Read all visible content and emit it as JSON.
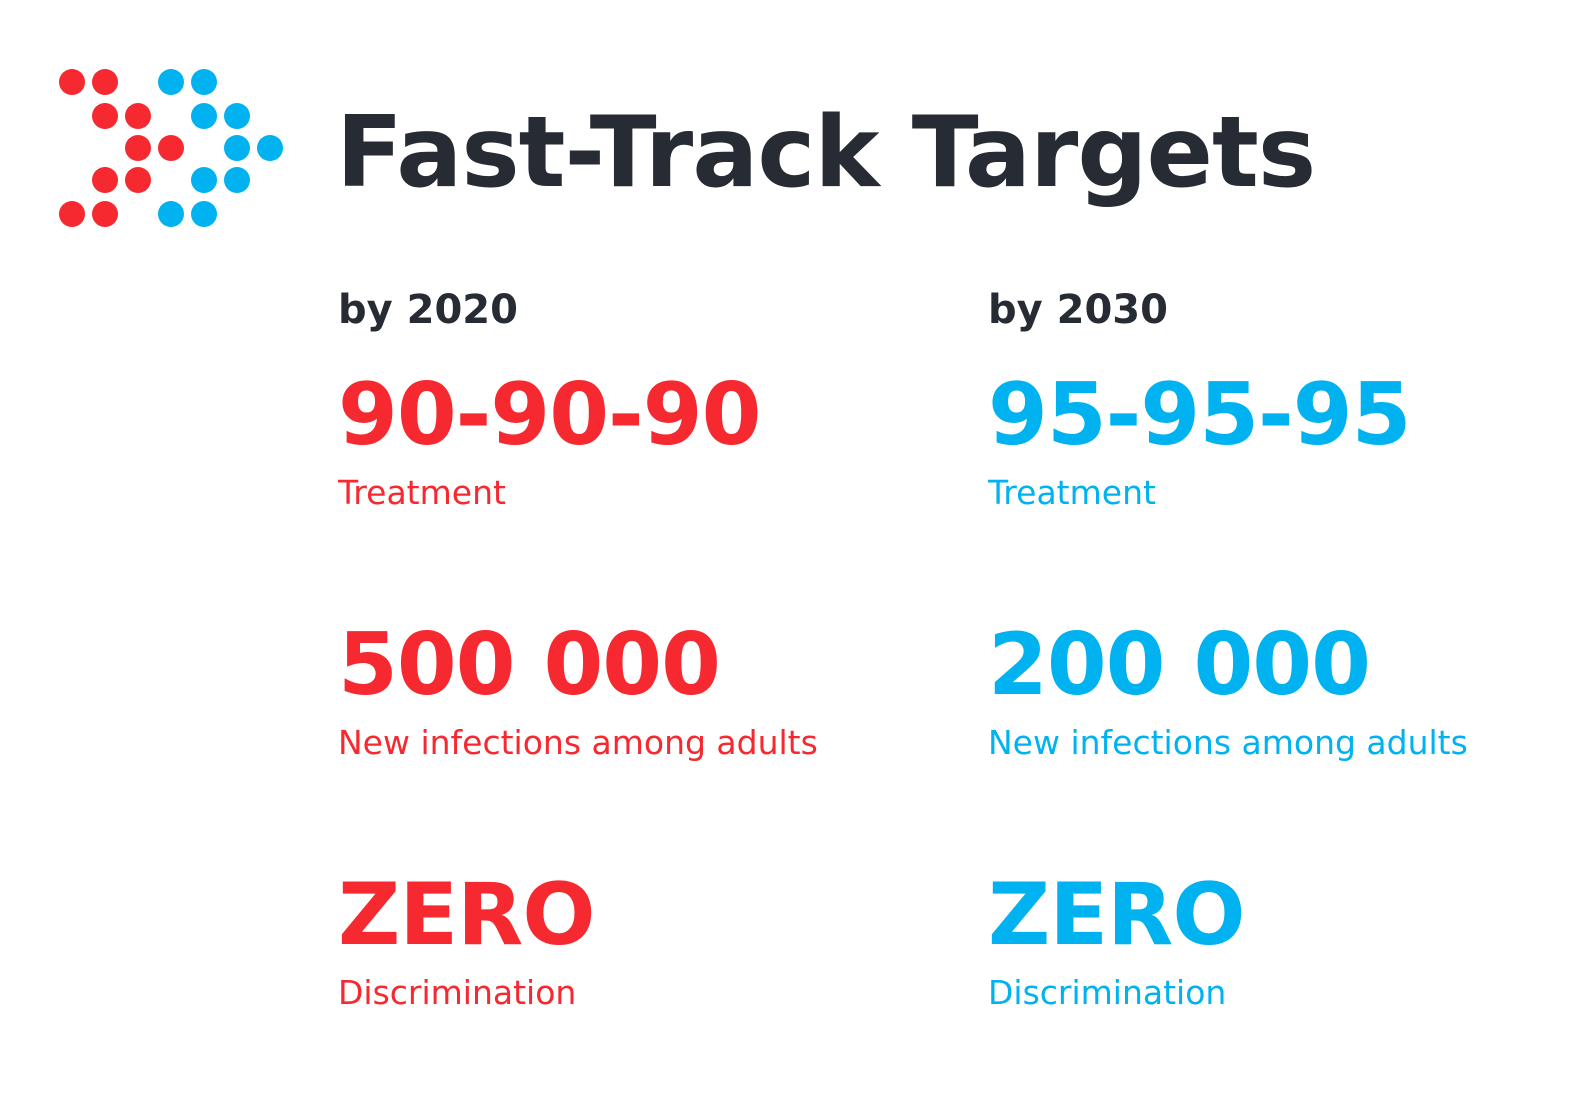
{
  "colors": {
    "title": "#272b33",
    "red": "#f5292f",
    "blue": "#00b2ef"
  },
  "logo": {
    "icon": "dots-arrow-logo-icon"
  },
  "header": {
    "title": "Fast-Track Targets"
  },
  "columns": [
    {
      "year": "by 2020",
      "color": "red",
      "metrics": [
        {
          "value": "90-90-90",
          "label": "Treatment"
        },
        {
          "value": "500 000",
          "label": "New infections among adults"
        },
        {
          "value": "ZERO",
          "label": "Discrimination"
        }
      ]
    },
    {
      "year": "by 2030",
      "color": "blue",
      "metrics": [
        {
          "value": "95-95-95",
          "label": "Treatment"
        },
        {
          "value": "200 000",
          "label": "New infections among adults"
        },
        {
          "value": "ZERO",
          "label": "Discrimination"
        }
      ]
    }
  ]
}
